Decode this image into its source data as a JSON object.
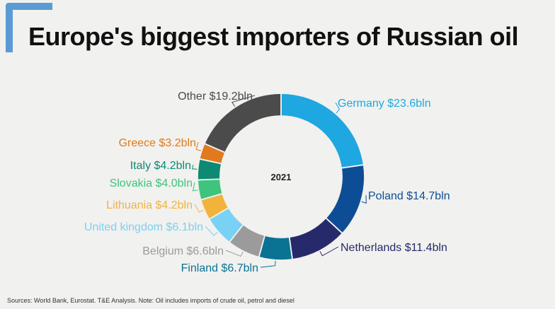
{
  "title": "Europe's biggest importers of Russian oil",
  "source_note": "Sources: World Bank, Eurostat. T&E Analysis.  Note:  Oil includes imports of crude oil, petrol and diesel",
  "accent_color": "#5b9bd5",
  "chart_data": {
    "type": "pie",
    "donut": true,
    "center_label": "2021",
    "unit": "$ billion",
    "slices": [
      {
        "name": "Germany",
        "value": 23.6,
        "label": "Germany $23.6bln",
        "color": "#1ea7e1"
      },
      {
        "name": "Poland",
        "value": 14.7,
        "label": "Poland $14.7bln",
        "color": "#0d4d96"
      },
      {
        "name": "Netherlands",
        "value": 11.4,
        "label": "Netherlands $11.4bln",
        "color": "#272a6a"
      },
      {
        "name": "Finland",
        "value": 6.7,
        "label": "Finland $6.7bln",
        "color": "#0a7394"
      },
      {
        "name": "Belgium",
        "value": 6.6,
        "label": "Belgium $6.6bln",
        "color": "#9b9b9b"
      },
      {
        "name": "United kingdom",
        "value": 6.1,
        "label": "United kingdom $6.1bln",
        "color": "#79d1f5"
      },
      {
        "name": "Lithuania",
        "value": 4.2,
        "label": "Lithuania $4.2bln",
        "color": "#f2b33c"
      },
      {
        "name": "Slovakia",
        "value": 4.0,
        "label": "Slovakia $4.0bln",
        "color": "#3ec47c"
      },
      {
        "name": "Italy",
        "value": 4.2,
        "label": "Italy $4.2bln",
        "color": "#0c8a73"
      },
      {
        "name": "Greece",
        "value": 3.2,
        "label": "Greece $3.2bln",
        "color": "#e07a1d"
      },
      {
        "name": "Other",
        "value": 19.2,
        "label": "Other $19.2bln",
        "color": "#4b4b4b"
      }
    ]
  }
}
